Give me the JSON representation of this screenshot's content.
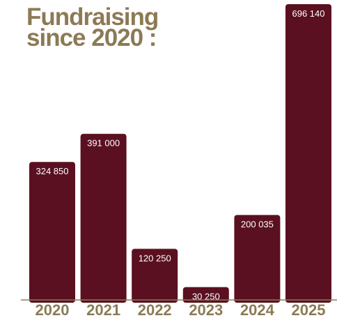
{
  "chart_data": {
    "type": "bar",
    "title_lines": [
      "Fundraising",
      "since 2020 :"
    ],
    "categories": [
      "2020",
      "2021",
      "2022",
      "2023",
      "2024",
      "2025"
    ],
    "values": [
      324850,
      391000,
      120250,
      30250,
      200035,
      696140
    ],
    "value_labels": [
      "324 850",
      "391 000",
      "120 250",
      "30 250",
      "200 035",
      "696 140"
    ],
    "xlabel": "",
    "ylabel": "",
    "ylim": [
      0,
      696140
    ],
    "grid": false,
    "legend": "none"
  },
  "colors": {
    "bar": "#5a1020",
    "accent": "#8c7a55",
    "value_text": "#ffffff"
  }
}
